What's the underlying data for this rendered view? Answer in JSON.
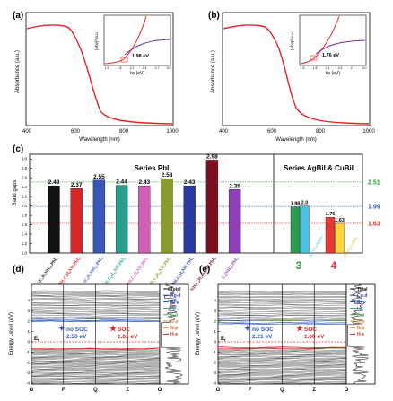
{
  "panel_a": {
    "label": "(a)",
    "ylabel": "Absorbance (a.u.)",
    "xlabel": "Wavelength (nm)",
    "xticks": [
      "400",
      "600",
      "800",
      "1000"
    ],
    "inset": {
      "ylabel": "(Ahv)²(a.u.)",
      "xlabel": "hv (eV)",
      "value": "1.98 eV",
      "xticks": [
        "1.5",
        "1.8",
        "2.1",
        "2.4",
        "2.7",
        "3.0"
      ]
    }
  },
  "panel_b": {
    "label": "(b)",
    "ylabel": "Absorbance (a.u.)",
    "xlabel": "Wavelength (nm)",
    "xticks": [
      "400",
      "600",
      "800",
      "1000"
    ],
    "inset": {
      "ylabel": "(Ahv)²(a.u.)",
      "xlabel": "hv (eV)",
      "value": "1.76 eV",
      "xticks": [
        "1.5",
        "1.8",
        "2.1",
        "2.4",
        "2.7",
        "3.0"
      ]
    }
  },
  "panel_c": {
    "label": "(c)",
    "ylabel": "Band gaps",
    "series1_title": "Series PbI",
    "series2_title": "Series AgBiI & CuBiI",
    "yticks": [
      "3.0",
      "2.8",
      "2.6",
      "2.4",
      "2.2",
      "2.0",
      "1.8",
      "1.6",
      "1.4",
      "1.2",
      "1.0"
    ],
    "ref_lines": [
      {
        "value": 2.51,
        "label": "2.51",
        "color": "#2e9a35"
      },
      {
        "value": 1.99,
        "label": "1.99",
        "color": "#2b58c8"
      },
      {
        "value": 1.63,
        "label": "1.63",
        "color": "#d62728"
      }
    ],
    "group1_label": "3",
    "group1_sub": "(AETz)₂AgBiI₆",
    "group2_label": "4",
    "group2_sub": "(PDA)₂CuBiI₆"
  },
  "chart_data": {
    "type": "bar",
    "ylabel": "Band gaps",
    "ylim": [
      1.0,
      3.1
    ],
    "categories": [
      "(C₇H₇NH₃)₂PbI₄",
      "NH₃C₄H₈NH₃PbI₄",
      "(C₆H₅NH₃)₂PbI₄",
      "NH₃C₆H₁₂NH₃PbI₄",
      "NH₃C₄H₈NH₃PbI₄",
      "NH₃C₈H₁₆NH₃PbI₄",
      "NH₃C₂H₄NH₃PbI₄",
      "NH₃C₆H₄Br₂NH₃PbI₄",
      "C₆(NH₃)₂PbI₄",
      "3a",
      "3b",
      "4a",
      "4b"
    ],
    "values": [
      2.43,
      2.37,
      2.55,
      2.44,
      2.43,
      2.58,
      2.43,
      2.98,
      2.35,
      1.98,
      2.0,
      1.76,
      1.63
    ],
    "value_labels": [
      "2.43",
      "2.37",
      "2.55",
      "2.44",
      "2.43",
      "2.58",
      "2.43",
      "2.98",
      "2.35",
      "1.98",
      "2.0",
      "1.76",
      "1.63"
    ],
    "colors": [
      "#111111",
      "#d62728",
      "#3955b8",
      "#2a9d8f",
      "#d25fb6",
      "#8a9a2a",
      "#2b3a9f",
      "#7a1020",
      "#8e3fb5",
      "#2e9a50",
      "#4cc0e0",
      "#e53935",
      "#ffd23f"
    ],
    "label_colors": [
      "#111111",
      "#d62728",
      "#3955b8",
      "#2a9d8f",
      "#d25fb6",
      "#8a9a2a",
      "#2b3a9f",
      "#7a1020",
      "#8e3fb5",
      "#2e9a50",
      "#2e9a50",
      "#e53935",
      "#e53935"
    ]
  },
  "panel_d": {
    "label": "(d)",
    "ylabel": "Energy Level (eV)",
    "ef": "E_f",
    "xticks": [
      "G",
      "F",
      "Q",
      "Z",
      "G"
    ],
    "yticks": [
      "4",
      "3",
      "2",
      "1",
      "0",
      "-1",
      "-2",
      "-3",
      "-4"
    ],
    "nosoc_label": "no SOC",
    "nosoc_value": "2.50 eV",
    "soc_label": "SOC",
    "soc_value": "1.81 eV",
    "legend": [
      {
        "name": "Total",
        "color": "#111111"
      },
      {
        "name": "Ag-d",
        "color": "#3a3aa0"
      },
      {
        "name": "Bi-p",
        "color": "#1f3fbf"
      },
      {
        "name": "I-p",
        "color": "#2a8fd0"
      },
      {
        "name": "C-p",
        "color": "#3fae4a"
      },
      {
        "name": "O-p",
        "color": "#d4a020"
      },
      {
        "name": "N-p",
        "color": "#d96a20"
      },
      {
        "name": "H-s",
        "color": "#d62728"
      }
    ]
  },
  "panel_e": {
    "label": "(e)",
    "ylabel": "Energy Level (eV)",
    "ef": "E_f",
    "xticks": [
      "G",
      "F",
      "Q",
      "Z",
      "G"
    ],
    "yticks": [
      "4",
      "3",
      "2",
      "1",
      "0",
      "-1",
      "-2",
      "-3",
      "-4"
    ],
    "nosoc_label": "no SOC",
    "nosoc_value": "2.21 eV",
    "soc_label": "SOC",
    "soc_value": "1.60 eV",
    "legend": [
      {
        "name": "Total",
        "color": "#111111"
      },
      {
        "name": "Cu-d",
        "color": "#3a3aa0"
      },
      {
        "name": "Bi-p",
        "color": "#1f3fbf"
      },
      {
        "name": "I-p",
        "color": "#2a8fd0"
      },
      {
        "name": "C-p",
        "color": "#3fae4a"
      },
      {
        "name": "O-p",
        "color": "#d4a020"
      },
      {
        "name": "N-p",
        "color": "#d96a20"
      },
      {
        "name": "H-s",
        "color": "#d62728"
      }
    ]
  }
}
